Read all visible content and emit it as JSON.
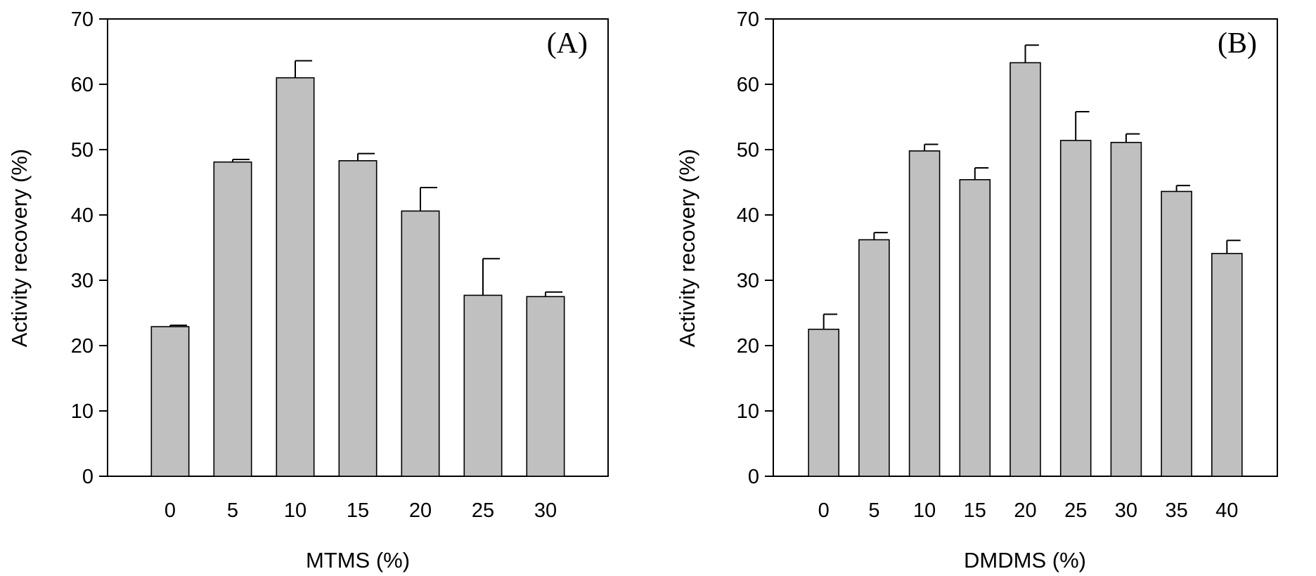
{
  "chart_data": [
    {
      "type": "bar",
      "panel_label": "(A)",
      "xlabel": "MTMS (%)",
      "ylabel": "Activity recovery (%)",
      "ylim": [
        0,
        70
      ],
      "yticks": [
        "0",
        "10",
        "20",
        "30",
        "40",
        "50",
        "60",
        "70"
      ],
      "categories": [
        "0",
        "5",
        "10",
        "15",
        "20",
        "25",
        "30"
      ],
      "values": [
        22.9,
        48.1,
        61.0,
        48.3,
        40.6,
        27.7,
        27.5
      ],
      "error_upper": [
        0.2,
        0.4,
        2.6,
        1.1,
        3.6,
        5.6,
        0.7
      ],
      "bar_color": "#c0c0c0",
      "grid": false
    },
    {
      "type": "bar",
      "panel_label": "(B)",
      "xlabel": "DMDMS (%)",
      "ylabel": "Activity recovery (%)",
      "ylim": [
        0,
        70
      ],
      "yticks": [
        "0",
        "10",
        "20",
        "30",
        "40",
        "50",
        "60",
        "70"
      ],
      "categories": [
        "0",
        "5",
        "10",
        "15",
        "20",
        "25",
        "30",
        "35",
        "40"
      ],
      "values": [
        22.5,
        36.2,
        49.8,
        45.4,
        63.3,
        51.4,
        51.1,
        43.6,
        34.1
      ],
      "error_upper": [
        2.3,
        1.1,
        1.0,
        1.8,
        2.7,
        4.4,
        1.3,
        0.9,
        2.0
      ],
      "bar_color": "#c0c0c0",
      "grid": false
    }
  ]
}
